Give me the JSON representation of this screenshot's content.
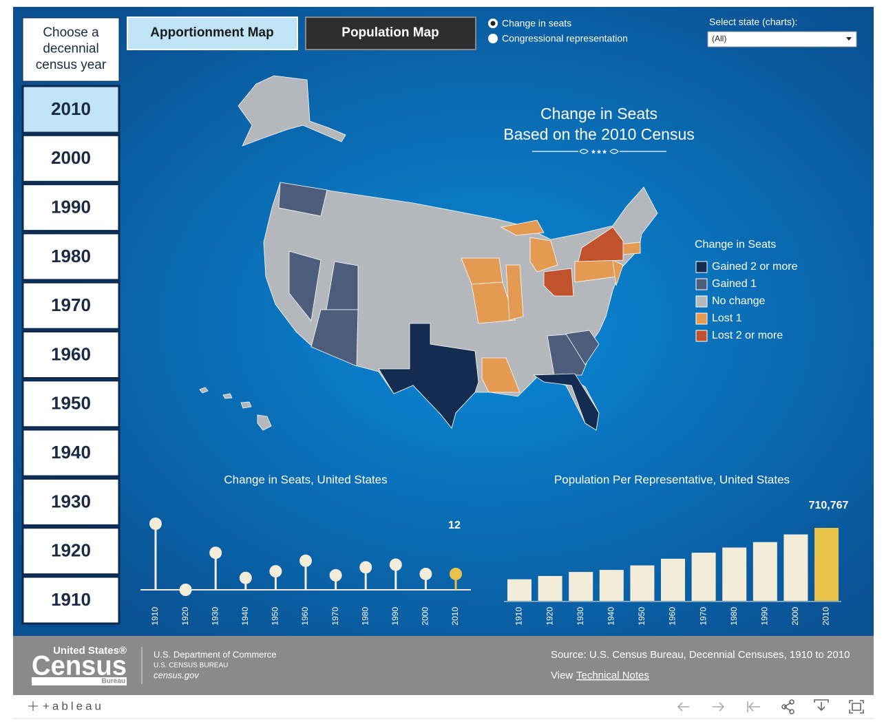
{
  "sidebar": {
    "heading": [
      "Choose a",
      "decennial",
      "census year"
    ],
    "years": [
      "2010",
      "2000",
      "1990",
      "1980",
      "1970",
      "1960",
      "1950",
      "1940",
      "1930",
      "1920",
      "1910"
    ]
  },
  "tabs": [
    "Apportionment Map",
    "Population Map"
  ],
  "radio": [
    "Change in seats",
    "Congressional representation"
  ],
  "state_select": {
    "label": "Select state (charts):",
    "value": "(All)"
  },
  "map": {
    "title": "Change in Seats",
    "subtitle": "Based on the 2010 Census",
    "legend": {
      "title": "Change in Seats",
      "items": [
        {
          "label": "Gained 2 or more",
          "color": "#132c50"
        },
        {
          "label": "Gained 1",
          "color": "#4d5e7c"
        },
        {
          "label": "No change",
          "color": "#b4b8bc"
        },
        {
          "label": "Lost 1",
          "color": "#e49a52"
        },
        {
          "label": "Lost 2 or more",
          "color": "#c0522d"
        }
      ]
    }
  },
  "chart_data": [
    {
      "type": "lollipop",
      "title": "Change in Seats, United States",
      "categories": [
        "1910",
        "1920",
        "1930",
        "1940",
        "1950",
        "1960",
        "1970",
        "1980",
        "1990",
        "2000",
        "2010"
      ],
      "values": [
        50,
        0,
        28,
        9,
        14,
        22,
        11,
        17,
        19,
        12,
        12
      ],
      "value_labels": [
        null,
        null,
        null,
        null,
        null,
        null,
        null,
        null,
        null,
        null,
        "12"
      ],
      "color": "#f3ecd9",
      "highlight_color": "#e8c24a"
    },
    {
      "type": "bar",
      "title": "Population Per Representative, United States",
      "categories": [
        "1910",
        "1920",
        "1930",
        "1940",
        "1950",
        "1960",
        "1970",
        "1980",
        "1990",
        "2000",
        "2010"
      ],
      "values": [
        210000,
        242000,
        281000,
        301000,
        345000,
        410000,
        469000,
        519000,
        572000,
        647000,
        710767
      ],
      "value_labels": [
        null,
        null,
        null,
        null,
        null,
        null,
        null,
        null,
        null,
        null,
        "710,767"
      ],
      "color": "#f3ecd9",
      "highlight_color": "#e8c24a"
    }
  ],
  "footer": {
    "logo_top": "United States®",
    "logo_main": "Census",
    "logo_bottom": "Bureau",
    "dept": "U.S. Department of Commerce",
    "bureau": "U.S. CENSUS BUREAU",
    "site": "census.gov",
    "source": "Source: U.S. Census Bureau, Decennial Censuses, 1910 to 2010",
    "view": "View",
    "notes_link": "Technical Notes"
  },
  "toolbar": {
    "brand": "+ableau"
  }
}
